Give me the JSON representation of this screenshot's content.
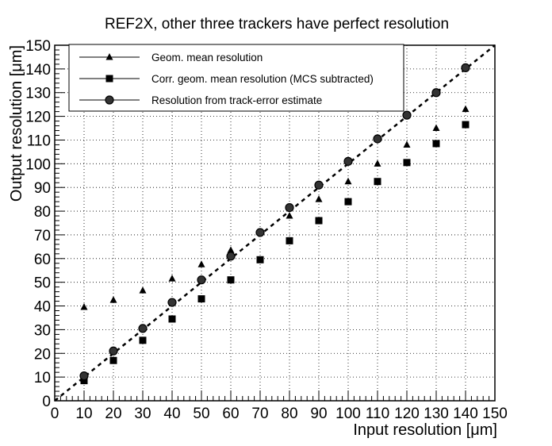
{
  "chart_data": {
    "type": "scatter",
    "title": "REF2X, other three trackers have perfect resolution",
    "xlabel": "Input resolution [μm]",
    "ylabel": "Output resolution [μm]",
    "xlim": [
      0,
      150
    ],
    "ylim": [
      0,
      150
    ],
    "xticks": [
      0,
      10,
      20,
      30,
      40,
      50,
      60,
      70,
      80,
      90,
      100,
      110,
      120,
      130,
      140,
      150
    ],
    "yticks": [
      0,
      10,
      20,
      30,
      40,
      50,
      60,
      70,
      80,
      90,
      100,
      110,
      120,
      130,
      140,
      150
    ],
    "grid": true,
    "legend_position": "top-left",
    "x": [
      10,
      20,
      30,
      40,
      50,
      60,
      70,
      80,
      90,
      100,
      110,
      120,
      130,
      140
    ],
    "series": [
      {
        "name": "Geom. mean resolution",
        "marker": "triangle",
        "values": [
          39.5,
          42.5,
          46.5,
          51.5,
          57.5,
          63.5,
          71,
          78,
          85,
          92.5,
          100,
          108,
          115,
          123
        ]
      },
      {
        "name": "Corr. geom. mean resolution (MCS subtracted)",
        "marker": "square",
        "values": [
          8.5,
          17,
          25.5,
          34.5,
          43,
          51,
          59.5,
          67.5,
          76,
          84,
          92.5,
          100.5,
          108.5,
          116.5
        ]
      },
      {
        "name": "Resolution from track-error estimate",
        "marker": "circle",
        "values": [
          10.5,
          21,
          30.5,
          41.5,
          51,
          61,
          71,
          81.5,
          91,
          101,
          110.5,
          120.5,
          130,
          140.5
        ]
      }
    ],
    "reference_line": {
      "style": "dashed",
      "slope": 1,
      "intercept": 0
    },
    "colors": {
      "markers": "#000000",
      "grid": "#000000",
      "background": "#ffffff"
    }
  }
}
